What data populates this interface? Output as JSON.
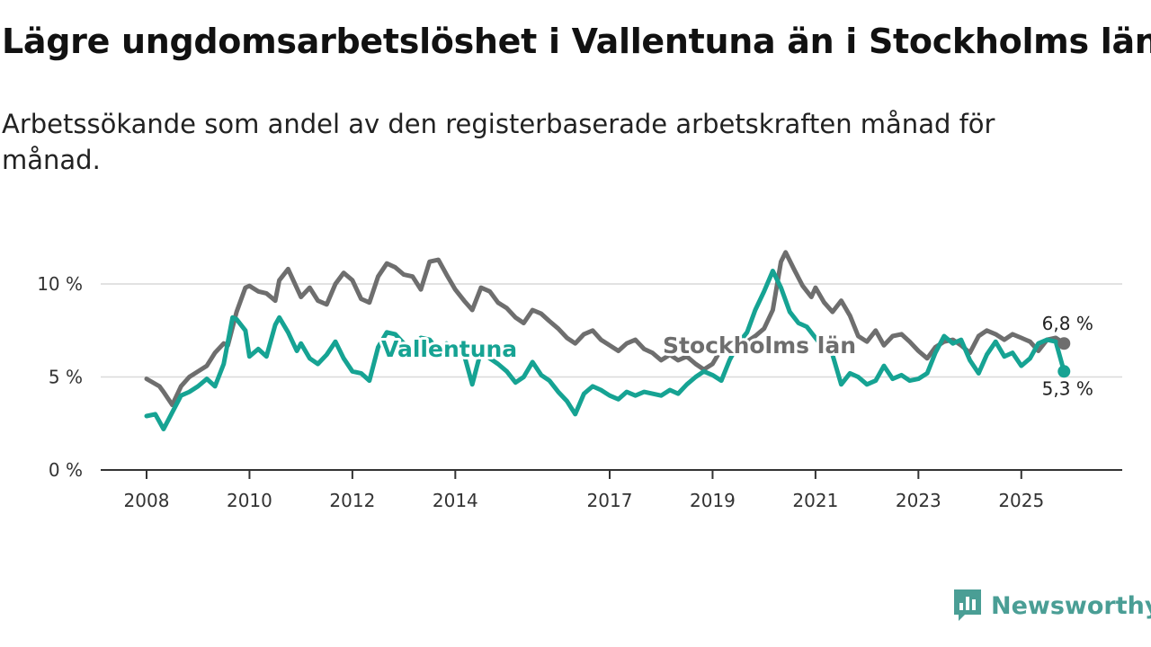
{
  "header": {
    "title": "Lägre ungdomsarbetslöshet i Vallentuna än i Stockholms län",
    "subtitle": "Arbetssökande som andel av den registerbaserade arbetskraften månad för månad."
  },
  "branding": {
    "name": "Newsworthy"
  },
  "chart_data": {
    "type": "line",
    "title": "Lägre ungdomsarbetslöshet i Vallentuna än i Stockholms län",
    "subtitle": "Arbetssökande som andel av den registerbaserade arbetskraften månad för månad.",
    "xlabel": "",
    "ylabel": "",
    "x_unit": "year",
    "xlim": [
      2008,
      2026.2
    ],
    "ylim": [
      0,
      12
    ],
    "y_ticks": [
      {
        "value": 0,
        "label": "0 %"
      },
      {
        "value": 5,
        "label": "5 %"
      },
      {
        "value": 10,
        "label": "10 %"
      }
    ],
    "x_ticks": [
      {
        "value": 2008,
        "label": "2008"
      },
      {
        "value": 2010,
        "label": "2010"
      },
      {
        "value": 2012,
        "label": "2012"
      },
      {
        "value": 2014,
        "label": "2014"
      },
      {
        "value": 2017,
        "label": "2017"
      },
      {
        "value": 2019,
        "label": "2019"
      },
      {
        "value": 2021,
        "label": "2021"
      },
      {
        "value": 2023,
        "label": "2023"
      },
      {
        "value": 2025,
        "label": "2025"
      }
    ],
    "grid": true,
    "legend": "inline labels",
    "series": [
      {
        "name": "Stockholms län",
        "color": "#6e6e6e",
        "end_label": "6,8 %",
        "x": [
          2008.0,
          2008.25,
          2008.33,
          2008.5,
          2008.67,
          2008.83,
          2009.0,
          2009.17,
          2009.33,
          2009.5,
          2009.58,
          2009.75,
          2009.92,
          2010.0,
          2010.17,
          2010.33,
          2010.5,
          2010.58,
          2010.75,
          2011.0,
          2011.17,
          2011.33,
          2011.5,
          2011.67,
          2011.83,
          2012.0,
          2012.17,
          2012.33,
          2012.5,
          2012.67,
          2012.83,
          2013.0,
          2013.17,
          2013.33,
          2013.5,
          2013.67,
          2013.83,
          2014.0,
          2014.17,
          2014.33,
          2014.5,
          2014.67,
          2014.83,
          2015.0,
          2015.17,
          2015.33,
          2015.5,
          2015.67,
          2015.83,
          2016.0,
          2016.17,
          2016.33,
          2016.5,
          2016.67,
          2016.83,
          2017.0,
          2017.17,
          2017.33,
          2017.5,
          2017.67,
          2017.83,
          2018.0,
          2018.17,
          2018.33,
          2018.5,
          2018.67,
          2018.83,
          2019.0,
          2019.17,
          2019.33,
          2019.5,
          2019.67,
          2019.83,
          2020.0,
          2020.17,
          2020.33,
          2020.42,
          2020.58,
          2020.75,
          2020.92,
          2021.0,
          2021.17,
          2021.33,
          2021.5,
          2021.67,
          2021.83,
          2022.0,
          2022.17,
          2022.33,
          2022.5,
          2022.67,
          2022.83,
          2023.0,
          2023.17,
          2023.33,
          2023.5,
          2023.67,
          2023.83,
          2024.0,
          2024.17,
          2024.33,
          2024.5,
          2024.67,
          2024.83,
          2025.0,
          2025.17,
          2025.33,
          2025.5,
          2025.67,
          2025.83
        ],
        "values": [
          4.9,
          4.5,
          4.2,
          3.5,
          4.5,
          5.0,
          5.3,
          5.6,
          6.3,
          6.8,
          6.7,
          8.5,
          9.8,
          9.9,
          9.6,
          9.5,
          9.1,
          10.2,
          10.8,
          9.3,
          9.8,
          9.1,
          8.9,
          10.0,
          10.6,
          10.2,
          9.2,
          9.0,
          10.4,
          11.1,
          10.9,
          10.5,
          10.4,
          9.7,
          11.2,
          11.3,
          10.5,
          9.7,
          9.1,
          8.6,
          9.8,
          9.6,
          9.0,
          8.7,
          8.2,
          7.9,
          8.6,
          8.4,
          8.0,
          7.6,
          7.1,
          6.8,
          7.3,
          7.5,
          7.0,
          6.7,
          6.4,
          6.8,
          7.0,
          6.5,
          6.3,
          5.9,
          6.2,
          5.9,
          6.1,
          5.7,
          5.4,
          5.7,
          6.5,
          6.8,
          7.0,
          6.9,
          7.2,
          7.6,
          8.6,
          11.2,
          11.7,
          10.8,
          9.9,
          9.3,
          9.8,
          9.0,
          8.5,
          9.1,
          8.3,
          7.2,
          6.9,
          7.5,
          6.7,
          7.2,
          7.3,
          6.9,
          6.4,
          6.0,
          6.6,
          6.9,
          7.0,
          6.7,
          6.3,
          7.2,
          7.5,
          7.3,
          7.0,
          7.3,
          7.1,
          6.9,
          6.4,
          7.0,
          7.1,
          6.8
        ]
      },
      {
        "name": "Vallentuna",
        "color": "#16a393",
        "end_label": "5,3 %",
        "x": [
          2008.0,
          2008.17,
          2008.33,
          2008.5,
          2008.67,
          2008.83,
          2009.0,
          2009.17,
          2009.33,
          2009.5,
          2009.67,
          2009.75,
          2009.92,
          2010.0,
          2010.17,
          2010.33,
          2010.5,
          2010.58,
          2010.75,
          2010.92,
          2011.0,
          2011.17,
          2011.33,
          2011.5,
          2011.67,
          2011.83,
          2012.0,
          2012.17,
          2012.33,
          2012.5,
          2012.67,
          2012.83,
          2013.0,
          2013.17,
          2013.33,
          2013.5,
          2013.67,
          2013.83,
          2014.0,
          2014.17,
          2014.33,
          2014.5,
          2014.67,
          2014.83,
          2015.0,
          2015.17,
          2015.33,
          2015.5,
          2015.67,
          2015.83,
          2016.0,
          2016.17,
          2016.33,
          2016.5,
          2016.67,
          2016.83,
          2017.0,
          2017.17,
          2017.33,
          2017.5,
          2017.67,
          2017.83,
          2018.0,
          2018.17,
          2018.33,
          2018.5,
          2018.67,
          2018.83,
          2019.0,
          2019.17,
          2019.33,
          2019.5,
          2019.67,
          2019.83,
          2020.0,
          2020.17,
          2020.33,
          2020.5,
          2020.67,
          2020.83,
          2021.0,
          2021.17,
          2021.33,
          2021.5,
          2021.67,
          2021.83,
          2022.0,
          2022.17,
          2022.33,
          2022.5,
          2022.67,
          2022.83,
          2023.0,
          2023.17,
          2023.33,
          2023.5,
          2023.67,
          2023.83,
          2024.0,
          2024.17,
          2024.33,
          2024.5,
          2024.67,
          2024.83,
          2025.0,
          2025.17,
          2025.33,
          2025.5,
          2025.67,
          2025.83
        ],
        "values": [
          2.9,
          3.0,
          2.2,
          3.1,
          4.0,
          4.2,
          4.5,
          4.9,
          4.5,
          5.7,
          8.2,
          8.1,
          7.5,
          6.1,
          6.5,
          6.1,
          7.8,
          8.2,
          7.4,
          6.4,
          6.8,
          6.0,
          5.7,
          6.2,
          6.9,
          6.0,
          5.3,
          5.2,
          4.8,
          6.6,
          7.4,
          7.3,
          6.8,
          6.6,
          7.1,
          7.0,
          6.4,
          6.8,
          6.5,
          6.2,
          4.6,
          6.4,
          6.0,
          5.7,
          5.3,
          4.7,
          5.0,
          5.8,
          5.1,
          4.8,
          4.2,
          3.7,
          3.0,
          4.1,
          4.5,
          4.3,
          4.0,
          3.8,
          4.2,
          4.0,
          4.2,
          4.1,
          4.0,
          4.3,
          4.1,
          4.6,
          5.0,
          5.3,
          5.1,
          4.8,
          5.9,
          6.8,
          7.4,
          8.6,
          9.6,
          10.7,
          9.8,
          8.5,
          7.9,
          7.7,
          7.1,
          6.5,
          6.2,
          4.6,
          5.2,
          5.0,
          4.6,
          4.8,
          5.6,
          4.9,
          5.1,
          4.8,
          4.9,
          5.2,
          6.3,
          7.2,
          6.8,
          7.0,
          5.9,
          5.2,
          6.2,
          6.9,
          6.1,
          6.3,
          5.6,
          6.0,
          6.8,
          7.0,
          6.9,
          5.3
        ]
      }
    ]
  }
}
